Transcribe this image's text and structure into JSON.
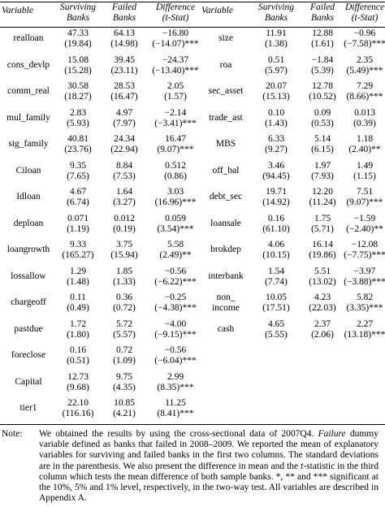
{
  "headers": {
    "variable": "Variable",
    "surviving": [
      "Surviving",
      "Banks"
    ],
    "failed": [
      "Failed",
      "Banks"
    ],
    "difference": [
      "Difference",
      "(t-Stat)"
    ]
  },
  "left_rows": [
    {
      "label": [
        "realloan"
      ],
      "s": [
        "47.33",
        "(19.84)"
      ],
      "f": [
        "64.13",
        "(14.98)"
      ],
      "d": [
        "−16.80",
        "(−14.07)***"
      ]
    },
    {
      "label": [
        "cons_devlp"
      ],
      "s": [
        "15.08",
        "(15.28)"
      ],
      "f": [
        "39.45",
        "(23.11)"
      ],
      "d": [
        "−24.37",
        "(−13.40)***"
      ]
    },
    {
      "label": [
        "comm_real"
      ],
      "s": [
        "30.58",
        "(18.27)"
      ],
      "f": [
        "28.53",
        "(16.47)"
      ],
      "d": [
        "2.05",
        "(1.57)"
      ]
    },
    {
      "label": [
        "mul_family"
      ],
      "s": [
        "2.83",
        "(5.93)"
      ],
      "f": [
        "4.97",
        "(7.97)"
      ],
      "d": [
        "−2.14",
        "(−3.41)***"
      ]
    },
    {
      "label": [
        "sig_family"
      ],
      "s": [
        "40.81",
        "(23.76)"
      ],
      "f": [
        "24.34",
        "(22.94)"
      ],
      "d": [
        "16.47",
        "(9.07)***"
      ]
    },
    {
      "label": [
        "Ciloan"
      ],
      "s": [
        "9.35",
        "(7.65)"
      ],
      "f": [
        "8.84",
        "(7.53)"
      ],
      "d": [
        "0.512",
        "(0.86)"
      ]
    },
    {
      "label": [
        "Idloan"
      ],
      "s": [
        "4.67",
        "(6.74)"
      ],
      "f": [
        "1.64",
        "(3.27)"
      ],
      "d": [
        "3.03",
        "(16.96)***"
      ]
    },
    {
      "label": [
        "deploan"
      ],
      "s": [
        "0.071",
        "(1.19)"
      ],
      "f": [
        "0.012",
        "(0.19)"
      ],
      "d": [
        "0.059",
        "(3.54)***"
      ]
    },
    {
      "label": [
        "loangrowth"
      ],
      "s": [
        "9.33",
        "(165.27)"
      ],
      "f": [
        "3.75",
        "(15.94)"
      ],
      "d": [
        "5.58",
        "(2.49)**"
      ]
    },
    {
      "label": [
        "lossallow"
      ],
      "s": [
        "1.29",
        "(1.48)"
      ],
      "f": [
        "1.85",
        "(1.33)"
      ],
      "d": [
        "−0.56",
        "(−6.22)***"
      ]
    },
    {
      "label": [
        "chargeoff"
      ],
      "s": [
        "0.11",
        "(0.49)"
      ],
      "f": [
        "0.36",
        "(0.72)"
      ],
      "d": [
        "−0.25",
        "(−4.38)***"
      ]
    },
    {
      "label": [
        "pastdue"
      ],
      "s": [
        "1.72",
        "(1.80)"
      ],
      "f": [
        "5.72",
        "(5.57)"
      ],
      "d": [
        "−4.00",
        "(−9.15)***"
      ]
    },
    {
      "label": [
        "foreclose"
      ],
      "s": [
        "0.16",
        "(0.51)"
      ],
      "f": [
        "0.72",
        "(1.09)"
      ],
      "d": [
        "−0.56",
        "(−6.04)***"
      ]
    },
    {
      "label": [
        "Capital"
      ],
      "s": [
        "12.73",
        "(9.68)"
      ],
      "f": [
        "9.75",
        "(4.35)"
      ],
      "d": [
        "2.99",
        "(8.35)***"
      ]
    },
    {
      "label": [
        "tier1"
      ],
      "s": [
        "22.10",
        "(116.16)"
      ],
      "f": [
        "10.85",
        "(4.21)"
      ],
      "d": [
        "11.25",
        "(8.41)***"
      ]
    }
  ],
  "right_rows": [
    {
      "label": [
        "size"
      ],
      "s": [
        "11.91",
        "(1.38)"
      ],
      "f": [
        "12.88",
        "(1.61)"
      ],
      "d": [
        "−0.96",
        "(−7.58)***"
      ]
    },
    {
      "label": [
        "roa"
      ],
      "s": [
        "0.51",
        "(5.97)"
      ],
      "f": [
        "−1.84",
        "(5.39)"
      ],
      "d": [
        "2.35",
        "(5.49)***"
      ]
    },
    {
      "label": [
        "sec_asset"
      ],
      "s": [
        "20.07",
        "(15.13)"
      ],
      "f": [
        "12.78",
        "(10.52)"
      ],
      "d": [
        "7.29",
        "(8.66)***"
      ]
    },
    {
      "label": [
        "trade_ast"
      ],
      "s": [
        "0.10",
        "(1.43)"
      ],
      "f": [
        "0.09",
        "(0.53)"
      ],
      "d": [
        "0.013",
        "(0.39)"
      ]
    },
    {
      "label": [
        "MBS"
      ],
      "s": [
        "6.33",
        "(9.27)"
      ],
      "f": [
        "5.14",
        "(6.15)"
      ],
      "d": [
        "1.18",
        "(2.40)**"
      ]
    },
    {
      "label": [
        "off_bal"
      ],
      "s": [
        "3.46",
        "(94.45)"
      ],
      "f": [
        "1.97",
        "(7.93)"
      ],
      "d": [
        "1.49",
        "(1.15)"
      ]
    },
    {
      "label": [
        "debt_sec"
      ],
      "s": [
        "19.71",
        "(14.92)"
      ],
      "f": [
        "12.20",
        "(11.24)"
      ],
      "d": [
        "7.51",
        "(9.07)***"
      ]
    },
    {
      "label": [
        "loansale"
      ],
      "s": [
        "0.16",
        "(61.10)"
      ],
      "f": [
        "1.75",
        "(5.71)"
      ],
      "d": [
        "−1.59",
        "(−2.40)**"
      ]
    },
    {
      "label": [
        "brokdep"
      ],
      "s": [
        "4.06",
        "(10.15)"
      ],
      "f": [
        "16.14",
        "(19.86)"
      ],
      "d": [
        "−12.08",
        "(−7.75)***"
      ]
    },
    {
      "label": [
        "interbank"
      ],
      "s": [
        "1.54",
        "(7.74)"
      ],
      "f": [
        "5.51",
        "(13.02)"
      ],
      "d": [
        "−3.97",
        "(−3.88)***"
      ]
    },
    {
      "label": [
        "non_",
        "income"
      ],
      "s": [
        "10.05",
        "(17.51)"
      ],
      "f": [
        "4.23",
        "(22.03)"
      ],
      "d": [
        "5.82",
        "(3.35)***"
      ]
    },
    {
      "label": [
        "cash"
      ],
      "s": [
        "4.65",
        "(5.55)"
      ],
      "f": [
        "2.37",
        "(2.06)"
      ],
      "d": [
        "2.27",
        "(13.18)***"
      ]
    }
  ],
  "note": {
    "label": "Note:",
    "text_parts": [
      {
        "t": "We obtained the results by using the cross-sectional data of 2007Q4. ",
        "i": false
      },
      {
        "t": "Failure",
        "i": true
      },
      {
        "t": " dummy variable defined as banks that failed in 2008–2009. We reported the mean of explanatory variables for surviving and failed banks in the first two columns. The standard deviations are in the parenthesis. We also present the difference in mean and the ",
        "i": false
      },
      {
        "t": "t",
        "i": true
      },
      {
        "t": "-statistic in the third column which tests the mean difference of both sample banks. *, ** and *** significant at the 10%, 5% and 1% level, respectively, in the two-way test. All variables are described in Appendix A.",
        "i": false
      }
    ]
  }
}
